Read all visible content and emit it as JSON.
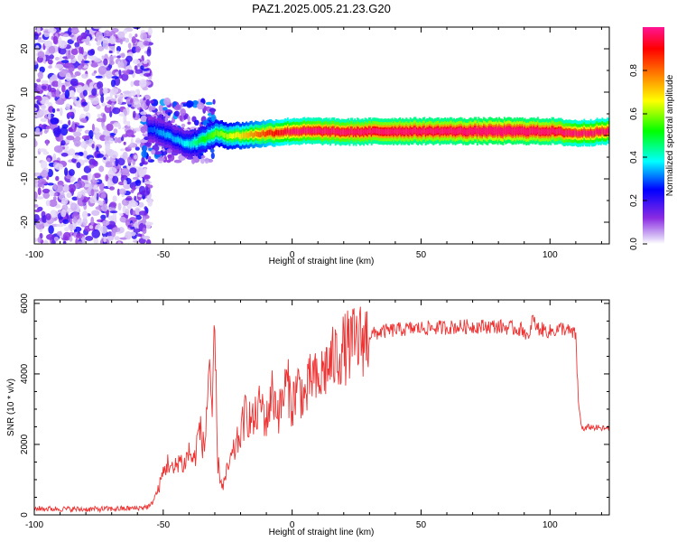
{
  "title": "PAZ1.2025.005.21.23.G20",
  "chart_data": [
    {
      "type": "heatmap",
      "title": "PAZ1.2025.005.21.23.G20",
      "xlabel": "Height of straight line (km)",
      "ylabel": "Frequency (Hz)",
      "xlim": [
        -100,
        123
      ],
      "ylim": [
        -25,
        25
      ],
      "xticks": [
        -100,
        -50,
        0,
        50,
        100
      ],
      "yticks": [
        -20,
        -10,
        0,
        10,
        20
      ],
      "grid": false,
      "colorbar": {
        "label": "Normalized spectral amplitude",
        "range": [
          0.0,
          1.0
        ],
        "ticks": [
          "0.0",
          "0.2",
          "0.4",
          "0.6",
          "0.8"
        ],
        "colormap": [
          "#ffffff",
          "#8a2be2",
          "#0000ff",
          "#00ffff",
          "#00ff00",
          "#ffff00",
          "#ff7f00",
          "#ff0000",
          "#ff1493"
        ]
      },
      "ridge": {
        "x": [
          -55,
          -50,
          -45,
          -40,
          -35,
          -30,
          -25,
          -20,
          -10,
          0,
          10,
          20,
          40,
          60,
          80,
          100,
          110,
          123
        ],
        "y": [
          1.5,
          0.5,
          -1.0,
          -2.0,
          -1.0,
          0.5,
          0.0,
          0.0,
          0.5,
          1.0,
          1.0,
          0.8,
          1.0,
          1.0,
          1.0,
          1.0,
          0.5,
          1.0
        ],
        "amplitude": [
          0.25,
          0.3,
          0.3,
          0.35,
          0.45,
          0.5,
          0.55,
          0.6,
          0.75,
          0.85,
          0.9,
          0.9,
          0.95,
          0.95,
          1.0,
          0.95,
          0.85,
          0.85
        ]
      }
    },
    {
      "type": "line",
      "xlabel": "Height of straight line (km)",
      "ylabel": "SNR (10 * v/v)",
      "xlim": [
        -100,
        123
      ],
      "ylim": [
        0,
        6100
      ],
      "xticks": [
        -100,
        -50,
        0,
        50,
        100
      ],
      "yticks": [
        0,
        2000,
        4000,
        6000
      ],
      "grid": false,
      "series": [
        {
          "color": "#ee3333",
          "x": [
            -100,
            -90,
            -80,
            -70,
            -60,
            -55,
            -52,
            -50,
            -48,
            -46,
            -44,
            -42,
            -40,
            -38,
            -36,
            -34,
            -32,
            -31,
            -30,
            -29,
            -28,
            -27,
            -26,
            -25,
            -24,
            -22,
            -20,
            -18,
            -15,
            -12,
            -10,
            -8,
            -5,
            -2,
            0,
            2,
            5,
            8,
            10,
            12,
            15,
            18,
            20,
            25,
            30,
            35,
            40,
            50,
            60,
            70,
            80,
            85,
            90,
            92,
            93,
            95,
            100,
            105,
            110,
            111,
            112,
            113,
            115,
            120,
            123
          ],
          "y": [
            180,
            170,
            160,
            170,
            190,
            250,
            700,
            1200,
            1500,
            1200,
            1600,
            1400,
            1800,
            1500,
            2500,
            1800,
            4600,
            2400,
            5200,
            1600,
            1100,
            800,
            1000,
            1300,
            1500,
            1900,
            2300,
            2900,
            2600,
            3200,
            2600,
            3500,
            2900,
            3800,
            3100,
            3700,
            3300,
            4000,
            3600,
            4100,
            4300,
            4600,
            4700,
            4900,
            5100,
            5200,
            5250,
            5300,
            5320,
            5350,
            5350,
            5300,
            5250,
            4900,
            5600,
            5300,
            5200,
            5300,
            5100,
            3200,
            2600,
            2400,
            2500,
            2450,
            2450
          ]
        }
      ]
    }
  ]
}
